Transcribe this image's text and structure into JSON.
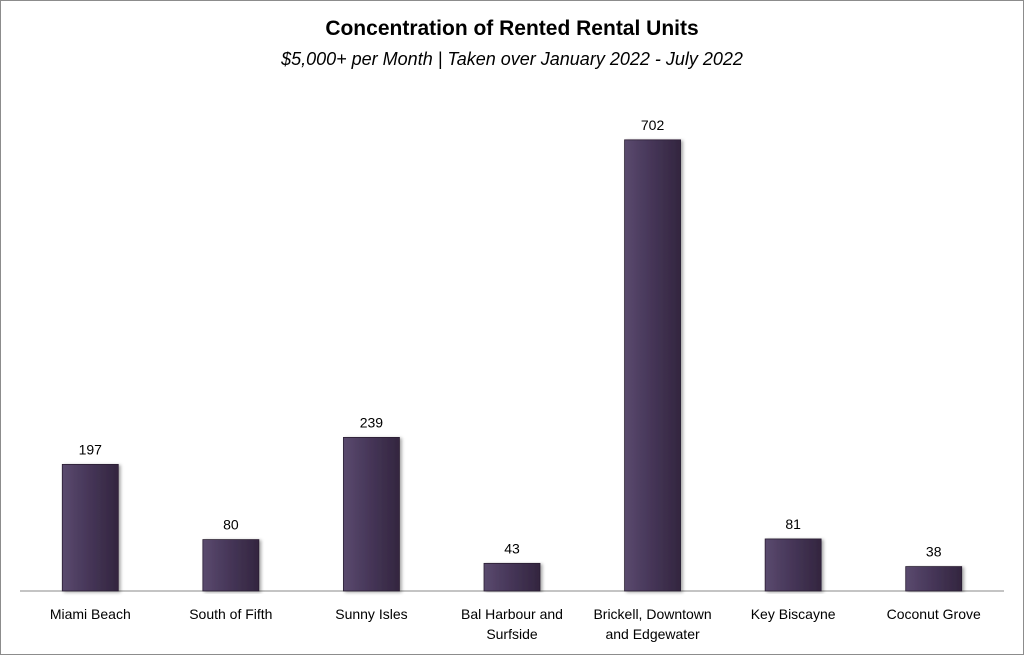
{
  "chart_data": {
    "type": "bar",
    "title": "Concentration of Rented Rental Units",
    "subtitle": "$5,000+ per Month | Taken over January 2022 - July 2022",
    "categories": [
      [
        "Miami Beach"
      ],
      [
        "South of Fifth"
      ],
      [
        "Sunny Isles"
      ],
      [
        "Bal Harbour and",
        "Surfside"
      ],
      [
        "Brickell, Downtown",
        "and Edgewater"
      ],
      [
        "Key Biscayne"
      ],
      [
        "Coconut Grove"
      ]
    ],
    "values": [
      197,
      80,
      239,
      43,
      702,
      81,
      38
    ],
    "ylim": [
      0,
      750
    ],
    "grid": false,
    "legend": "none",
    "bar_color": "#453557",
    "axis_color": "#888888"
  }
}
